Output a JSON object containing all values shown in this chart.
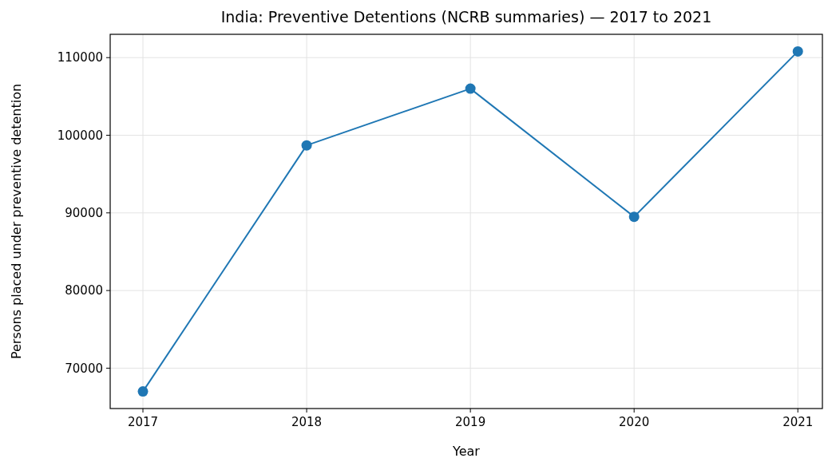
{
  "chart_data": {
    "type": "line",
    "title": "India: Preventive Detentions (NCRB summaries) — 2017 to 2021",
    "xlabel": "Year",
    "ylabel": "Persons placed under preventive detention",
    "x": [
      2017,
      2018,
      2019,
      2020,
      2021
    ],
    "series": [
      {
        "color": "#1f77b4",
        "values": [
          67000,
          98700,
          106000,
          89500,
          110800
        ]
      }
    ],
    "xlim": [
      2016.8,
      2021.15
    ],
    "xticks": [
      2017,
      2018,
      2019,
      2020,
      2021
    ],
    "ylim": [
      64800,
      113000
    ],
    "yticks": [
      70000,
      80000,
      90000,
      100000,
      110000
    ],
    "grid": true,
    "marker": "circle",
    "line_style": "solid"
  }
}
